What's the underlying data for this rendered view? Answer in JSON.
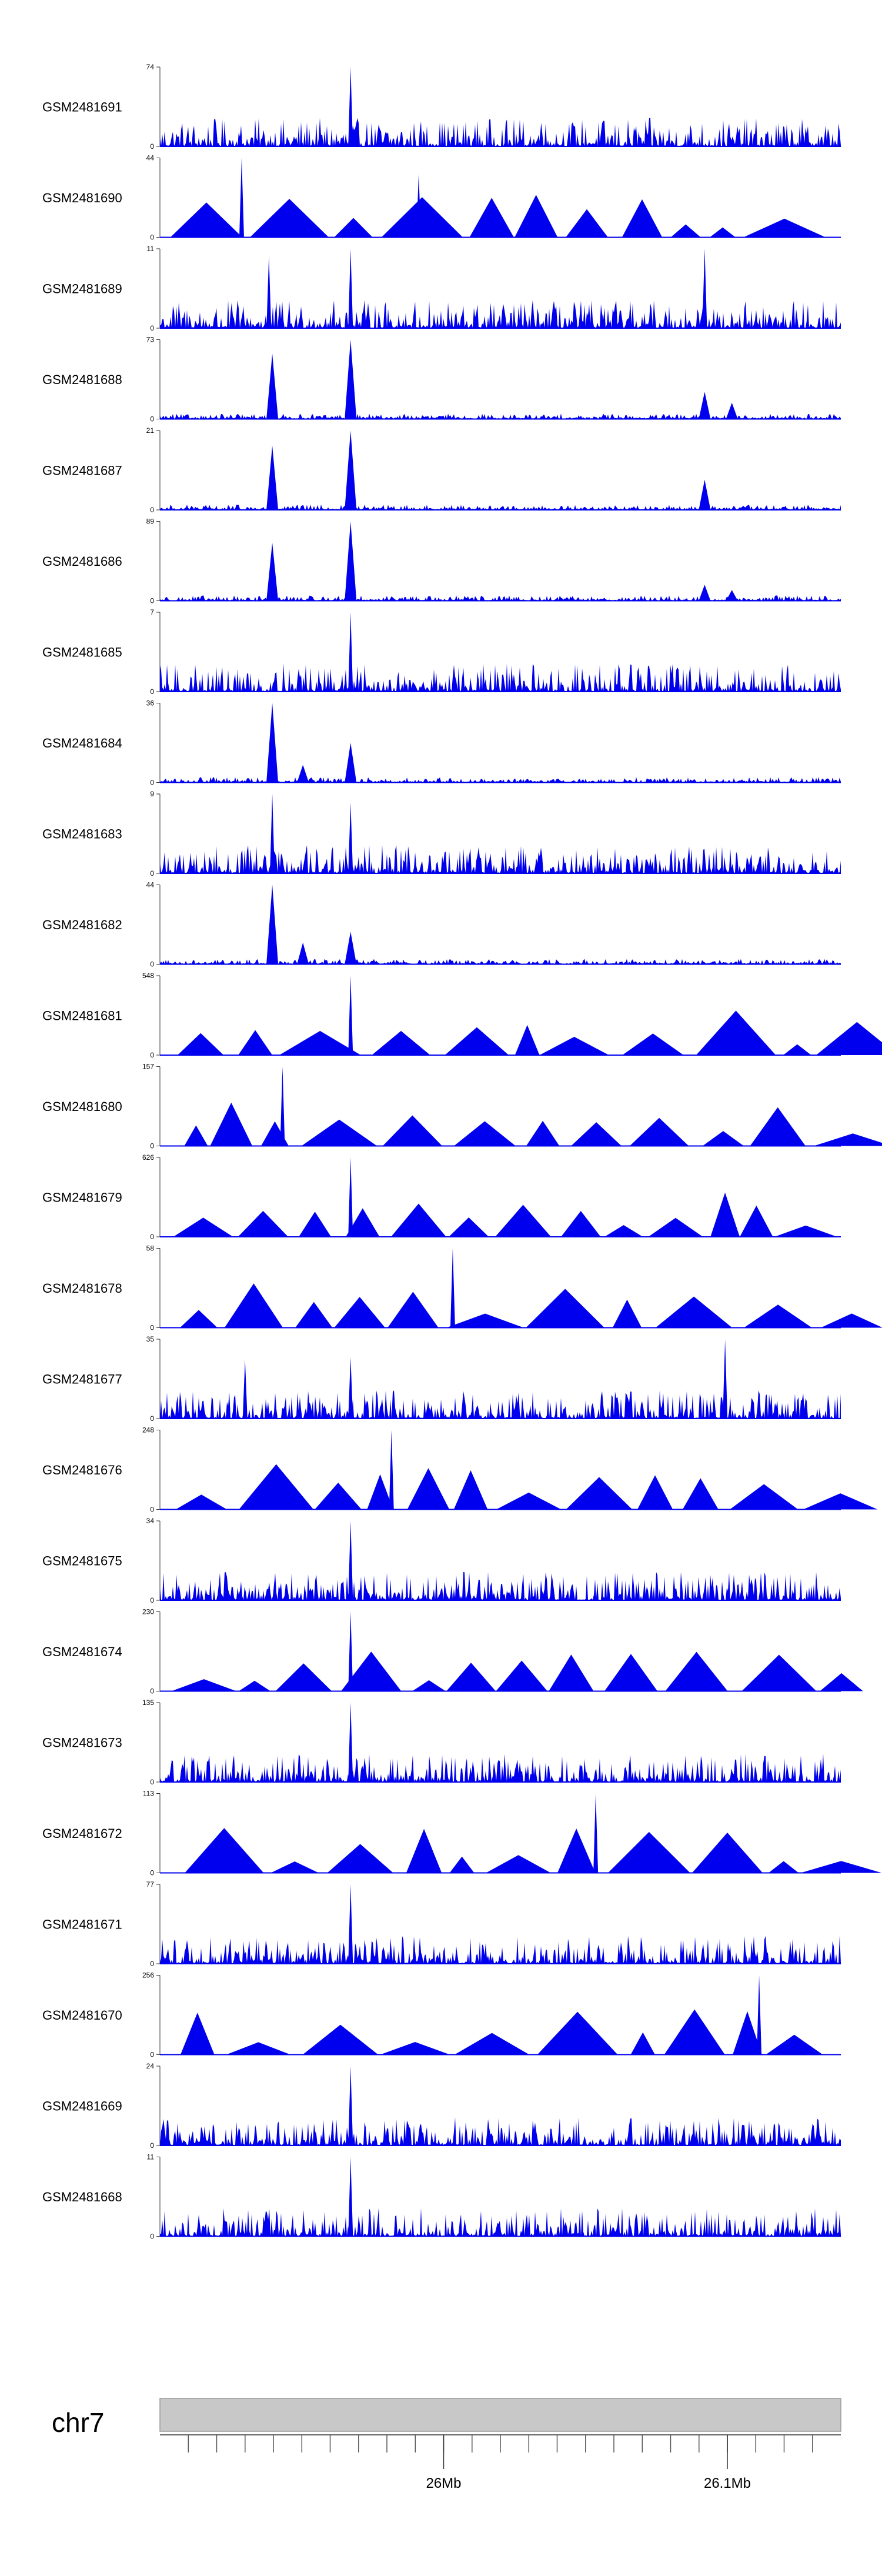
{
  "chart_data": {
    "type": "area",
    "title": "",
    "chromosome": "chr7",
    "x_tick_labels": [
      "26Mb",
      "26.1Mb"
    ],
    "region": {
      "start_mb": 25.9,
      "end_mb": 26.14
    },
    "series_color": "#0000ee",
    "tracks": [
      {
        "name": "GSM2481691",
        "ymin": 0,
        "ymax": 74,
        "style": "dense",
        "spikes": [
          {
            "x": 0.28,
            "v": 74
          },
          {
            "x": 0.56,
            "v": 22
          }
        ]
      },
      {
        "name": "GSM2481690",
        "ymin": 0,
        "ymax": 44,
        "style": "wide",
        "spikes": [
          {
            "x": 0.12,
            "v": 44
          },
          {
            "x": 0.38,
            "v": 35
          }
        ]
      },
      {
        "name": "GSM2481689",
        "ymin": 0,
        "ymax": 11,
        "style": "dense",
        "spikes": [
          {
            "x": 0.16,
            "v": 10
          },
          {
            "x": 0.28,
            "v": 11
          },
          {
            "x": 0.8,
            "v": 11
          }
        ]
      },
      {
        "name": "GSM2481688",
        "ymin": 0,
        "ymax": 73,
        "style": "peaks",
        "spikes": [
          {
            "x": 0.165,
            "v": 60
          },
          {
            "x": 0.28,
            "v": 73
          },
          {
            "x": 0.8,
            "v": 25
          },
          {
            "x": 0.84,
            "v": 15
          }
        ]
      },
      {
        "name": "GSM2481687",
        "ymin": 0,
        "ymax": 21,
        "style": "peaks",
        "spikes": [
          {
            "x": 0.165,
            "v": 17
          },
          {
            "x": 0.28,
            "v": 21
          },
          {
            "x": 0.8,
            "v": 8
          }
        ]
      },
      {
        "name": "GSM2481686",
        "ymin": 0,
        "ymax": 89,
        "style": "peaks",
        "spikes": [
          {
            "x": 0.165,
            "v": 65
          },
          {
            "x": 0.28,
            "v": 89
          },
          {
            "x": 0.8,
            "v": 18
          },
          {
            "x": 0.84,
            "v": 12
          }
        ]
      },
      {
        "name": "GSM2481685",
        "ymin": 0,
        "ymax": 7,
        "style": "dense",
        "spikes": [
          {
            "x": 0.28,
            "v": 7
          }
        ]
      },
      {
        "name": "GSM2481684",
        "ymin": 0,
        "ymax": 36,
        "style": "peaks",
        "spikes": [
          {
            "x": 0.165,
            "v": 36
          },
          {
            "x": 0.21,
            "v": 8
          },
          {
            "x": 0.28,
            "v": 18
          }
        ]
      },
      {
        "name": "GSM2481683",
        "ymin": 0,
        "ymax": 9,
        "style": "dense",
        "spikes": [
          {
            "x": 0.165,
            "v": 9
          },
          {
            "x": 0.28,
            "v": 8
          }
        ]
      },
      {
        "name": "GSM2481682",
        "ymin": 0,
        "ymax": 44,
        "style": "peaks",
        "spikes": [
          {
            "x": 0.165,
            "v": 44
          },
          {
            "x": 0.21,
            "v": 12
          },
          {
            "x": 0.28,
            "v": 18
          }
        ]
      },
      {
        "name": "GSM2481681",
        "ymin": 0,
        "ymax": 548,
        "style": "wide",
        "spikes": [
          {
            "x": 0.28,
            "v": 548
          }
        ]
      },
      {
        "name": "GSM2481680",
        "ymin": 0,
        "ymax": 157,
        "style": "wide",
        "spikes": [
          {
            "x": 0.18,
            "v": 157
          }
        ]
      },
      {
        "name": "GSM2481679",
        "ymin": 0,
        "ymax": 626,
        "style": "wide",
        "spikes": [
          {
            "x": 0.28,
            "v": 626
          }
        ]
      },
      {
        "name": "GSM2481678",
        "ymin": 0,
        "ymax": 58,
        "style": "wide",
        "spikes": [
          {
            "x": 0.43,
            "v": 58
          }
        ]
      },
      {
        "name": "GSM2481677",
        "ymin": 0,
        "ymax": 35,
        "style": "dense",
        "spikes": [
          {
            "x": 0.125,
            "v": 26
          },
          {
            "x": 0.28,
            "v": 27
          },
          {
            "x": 0.83,
            "v": 35
          }
        ]
      },
      {
        "name": "GSM2481676",
        "ymin": 0,
        "ymax": 248,
        "style": "wide",
        "spikes": [
          {
            "x": 0.34,
            "v": 248
          }
        ]
      },
      {
        "name": "GSM2481675",
        "ymin": 0,
        "ymax": 34,
        "style": "dense",
        "spikes": [
          {
            "x": 0.28,
            "v": 34
          }
        ]
      },
      {
        "name": "GSM2481674",
        "ymin": 0,
        "ymax": 230,
        "style": "wide",
        "spikes": [
          {
            "x": 0.28,
            "v": 230
          }
        ]
      },
      {
        "name": "GSM2481673",
        "ymin": 0,
        "ymax": 135,
        "style": "dense",
        "spikes": [
          {
            "x": 0.28,
            "v": 135
          }
        ]
      },
      {
        "name": "GSM2481672",
        "ymin": 0,
        "ymax": 113,
        "style": "wide",
        "spikes": [
          {
            "x": 0.64,
            "v": 113
          }
        ]
      },
      {
        "name": "GSM2481671",
        "ymin": 0,
        "ymax": 77,
        "style": "dense",
        "spikes": [
          {
            "x": 0.28,
            "v": 77
          }
        ]
      },
      {
        "name": "GSM2481670",
        "ymin": 0,
        "ymax": 256,
        "style": "wide",
        "spikes": [
          {
            "x": 0.88,
            "v": 256
          }
        ]
      },
      {
        "name": "GSM2481669",
        "ymin": 0,
        "ymax": 24,
        "style": "dense",
        "spikes": [
          {
            "x": 0.28,
            "v": 24
          }
        ]
      },
      {
        "name": "GSM2481668",
        "ymin": 0,
        "ymax": 11,
        "style": "dense",
        "spikes": [
          {
            "x": 0.28,
            "v": 11
          }
        ]
      }
    ]
  }
}
